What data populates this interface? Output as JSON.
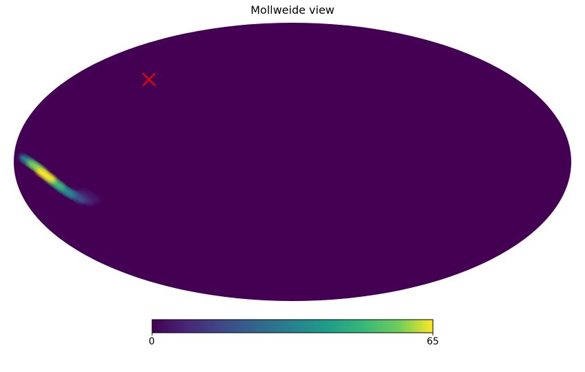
{
  "title": "Mollweide view",
  "chart_data": {
    "type": "heatmap",
    "projection": "mollweide",
    "title": "Mollweide view",
    "colormap": "viridis",
    "colorbar": {
      "min": 0,
      "max": 65,
      "tick_labels": [
        "0",
        "65"
      ],
      "placement": "bottom"
    },
    "background_value": 0,
    "hotspot": {
      "description_points": [
        {
          "lon": -170,
          "lat": 0,
          "value": 35
        },
        {
          "lon": -165,
          "lat": -3,
          "value": 58
        },
        {
          "lon": -160,
          "lat": -7,
          "value": 65
        },
        {
          "lon": -155,
          "lat": -11,
          "value": 50
        },
        {
          "lon": -150,
          "lat": -15,
          "value": 35
        },
        {
          "lon": -145,
          "lat": -18,
          "value": 20
        },
        {
          "lon": -140,
          "lat": -19,
          "value": 10
        },
        {
          "lon": -135,
          "lat": -18,
          "value": 5
        }
      ]
    },
    "marker": {
      "symbol": "x",
      "color": "#ff0000",
      "lon": -115,
      "lat": 45
    }
  }
}
